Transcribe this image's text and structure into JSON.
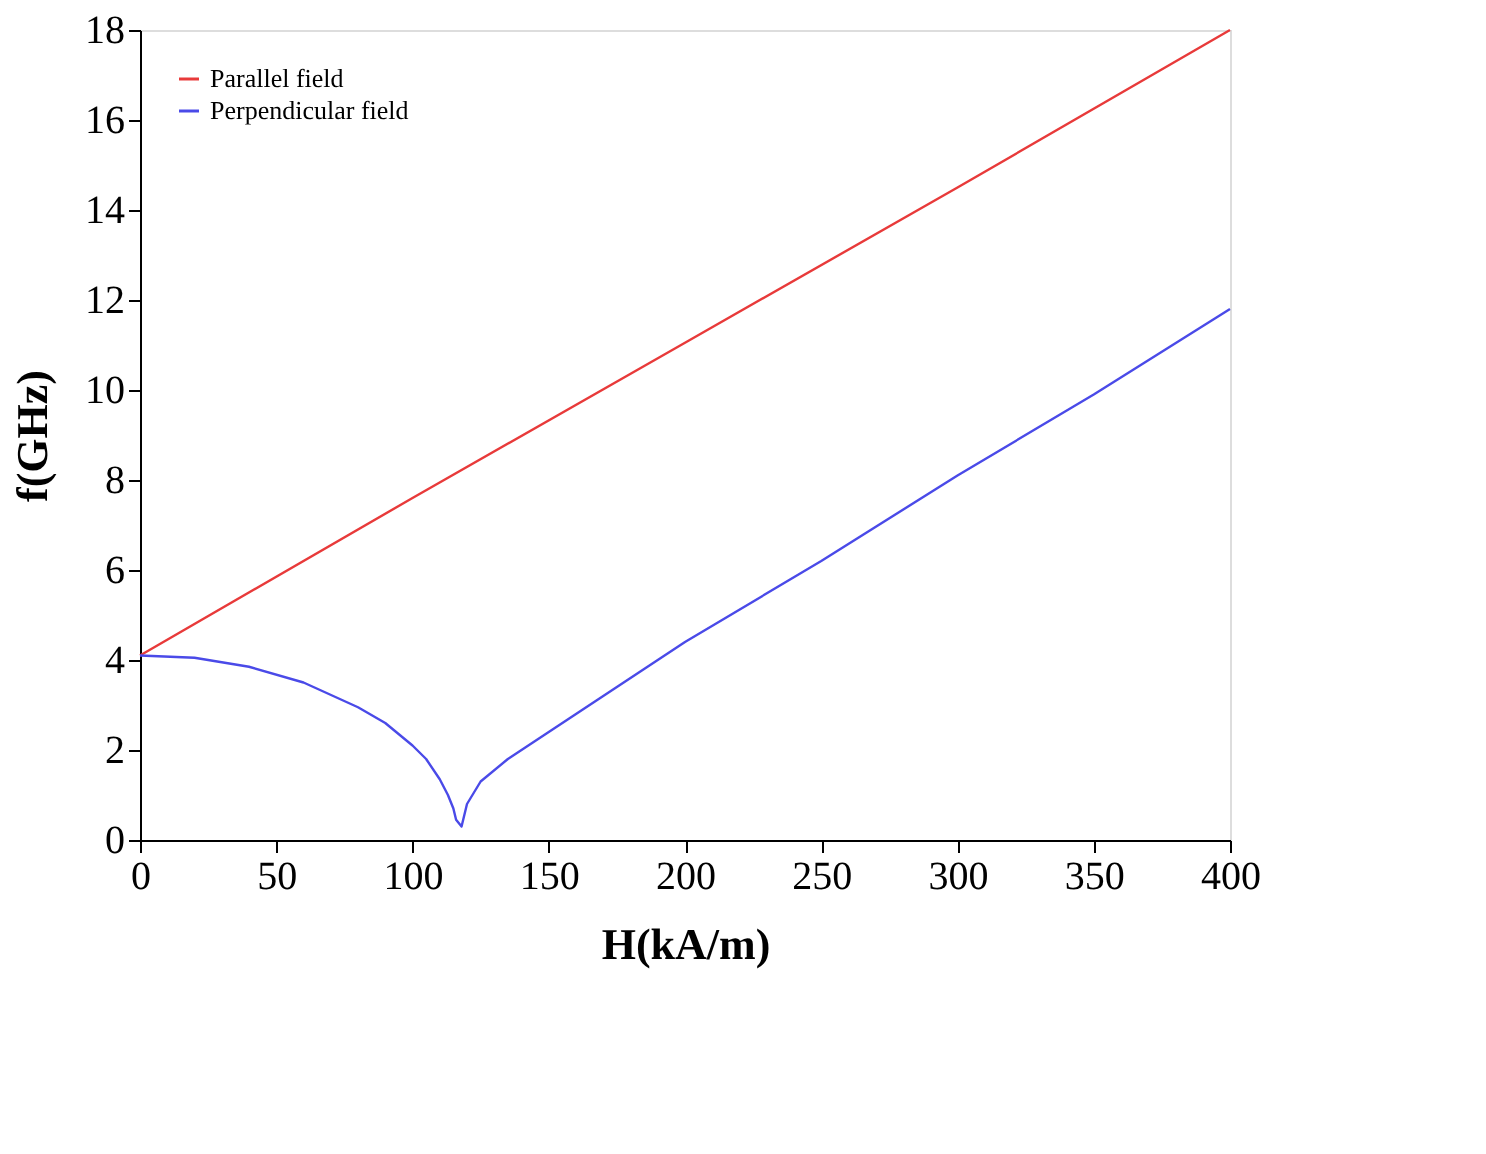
{
  "chart_data": {
    "type": "line",
    "xlabel": "H(kA/m)",
    "ylabel": "f(GHz)",
    "xlim": [
      0,
      400
    ],
    "ylim": [
      0,
      18
    ],
    "xticks": [
      0,
      50,
      100,
      150,
      200,
      250,
      300,
      350,
      400
    ],
    "yticks": [
      0,
      2,
      4,
      6,
      8,
      10,
      12,
      14,
      16,
      18
    ],
    "grid": false,
    "legend": "top left",
    "marker": "none",
    "line_style": "solid",
    "series": [
      {
        "name": "Parallel field",
        "color": "#e83a3a",
        "x": [
          0,
          100,
          200,
          300,
          400
        ],
        "values": [
          4.1,
          7.6,
          11.05,
          14.5,
          18.0
        ]
      },
      {
        "name": "Perpendicular field",
        "color": "#4a4ae8",
        "x": [
          0,
          20,
          40,
          60,
          80,
          90,
          100,
          105,
          110,
          113,
          115,
          116,
          118,
          120,
          125,
          135,
          150,
          175,
          200,
          250,
          300,
          350,
          400
        ],
        "values": [
          4.1,
          4.05,
          3.85,
          3.5,
          2.95,
          2.6,
          2.1,
          1.8,
          1.35,
          1.0,
          0.7,
          0.45,
          0.3,
          0.8,
          1.3,
          1.8,
          2.4,
          3.4,
          4.4,
          6.2,
          8.1,
          9.9,
          11.8
        ]
      }
    ]
  }
}
